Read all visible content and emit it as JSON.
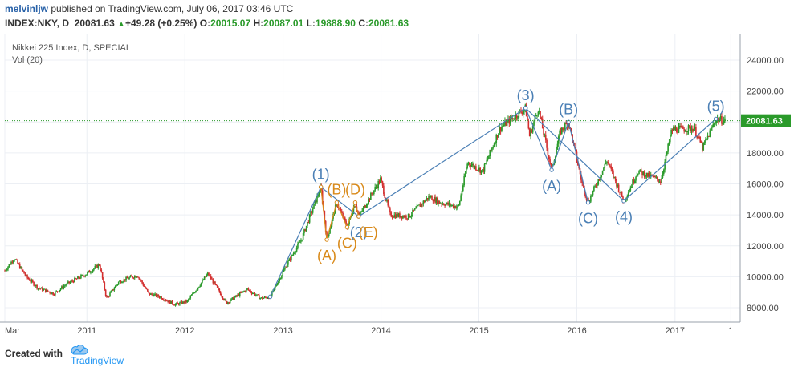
{
  "header": {
    "user": "melvinljw",
    "publish_text": " published on TradingView.com, July 06, 2017 03:46 UTC",
    "symbol": "INDEX:NKY, D",
    "last": "20081.63",
    "change_arrow": "▲",
    "change": "+49.28 (+0.25%)",
    "o_label": "O:",
    "o_value": "20015.07",
    "h_label": "H:",
    "h_value": "20087.01",
    "l_label": "L:",
    "l_value": "19888.90",
    "c_label": "C:",
    "c_value": "20081.63"
  },
  "legend": {
    "title": "Nikkei 225 Index, D, SPECIAL",
    "vol": "Vol (20)"
  },
  "footer": {
    "created": "Created with",
    "brand": "TradingView"
  },
  "colors": {
    "up": "#2a9a2a",
    "down": "#d32f2f",
    "wave_blue": "#4a7fb5",
    "wave_orange": "#d98a1a",
    "price_tag": "#2a9a2a",
    "grid": "#eceff4"
  },
  "chart_data": {
    "type": "line",
    "title": "Nikkei 225 Index, D, SPECIAL",
    "x_ticks": [
      "Mar",
      "2011",
      "2012",
      "2013",
      "2014",
      "2015",
      "2016",
      "2017",
      "1"
    ],
    "y_ticks": [
      "8000.00",
      "10000.00",
      "12000.00",
      "14000.00",
      "16000.00",
      "18000.00",
      "20000.00",
      "22000.00",
      "24000.00"
    ],
    "ylim": [
      7000,
      25000
    ],
    "last_price": 20081.63,
    "last_price_label": "20081.63",
    "series": [
      {
        "values": [
          [
            "2010-03-01",
            10400
          ],
          [
            "2010-04-05",
            11200
          ],
          [
            "2010-05-20",
            10000
          ],
          [
            "2010-07-01",
            9300
          ],
          [
            "2010-08-31",
            8900
          ],
          [
            "2010-10-15",
            9500
          ],
          [
            "2010-12-31",
            10200
          ],
          [
            "2011-02-17",
            10800
          ],
          [
            "2011-03-15",
            8600
          ],
          [
            "2011-05-01",
            9700
          ],
          [
            "2011-07-08",
            10100
          ],
          [
            "2011-08-19",
            8900
          ],
          [
            "2011-10-01",
            8700
          ],
          [
            "2011-11-25",
            8200
          ],
          [
            "2012-01-10",
            8400
          ],
          [
            "2012-03-27",
            10200
          ],
          [
            "2012-06-04",
            8300
          ],
          [
            "2012-08-20",
            9200
          ],
          [
            "2012-10-10",
            8600
          ],
          [
            "2012-11-14",
            8700
          ],
          [
            "2013-01-15",
            10800
          ],
          [
            "2013-03-10",
            12400
          ],
          [
            "2013-05-22",
            15800
          ],
          [
            "2013-06-13",
            12400
          ],
          [
            "2013-07-20",
            14800
          ],
          [
            "2013-08-28",
            13200
          ],
          [
            "2013-09-27",
            14800
          ],
          [
            "2013-10-10",
            13900
          ],
          [
            "2013-12-30",
            16300
          ],
          [
            "2014-02-04",
            14000
          ],
          [
            "2014-04-14",
            13900
          ],
          [
            "2014-06-30",
            15200
          ],
          [
            "2014-08-08",
            14800
          ],
          [
            "2014-10-17",
            14500
          ],
          [
            "2014-11-20",
            17400
          ],
          [
            "2015-01-15",
            16800
          ],
          [
            "2015-03-20",
            19600
          ],
          [
            "2015-06-24",
            20900
          ],
          [
            "2015-07-09",
            19100
          ],
          [
            "2015-08-10",
            20900
          ],
          [
            "2015-09-29",
            16900
          ],
          [
            "2015-11-01",
            19400
          ],
          [
            "2015-12-01",
            20000
          ],
          [
            "2016-01-21",
            16000
          ],
          [
            "2016-02-12",
            14800
          ],
          [
            "2016-04-22",
            17500
          ],
          [
            "2016-06-24",
            14900
          ],
          [
            "2016-08-15",
            16800
          ],
          [
            "2016-11-09",
            16200
          ],
          [
            "2016-12-20",
            19500
          ],
          [
            "2017-03-13",
            19600
          ],
          [
            "2017-04-14",
            18300
          ],
          [
            "2017-06-02",
            20200
          ],
          [
            "2017-07-06",
            20081
          ]
        ]
      }
    ],
    "annotations": [
      {
        "label": "(1)",
        "date": "2013-05-22",
        "price": 15800,
        "color": "blue",
        "pos": "above"
      },
      {
        "label": "(2)",
        "date": "2013-10-10",
        "price": 13900,
        "color": "blue",
        "pos": "below"
      },
      {
        "label": "(3)",
        "date": "2015-06-24",
        "price": 20900,
        "color": "blue",
        "pos": "above"
      },
      {
        "label": "(4)",
        "date": "2016-06-24",
        "price": 14900,
        "color": "blue",
        "pos": "below"
      },
      {
        "label": "(5)",
        "date": "2017-06-02",
        "price": 20200,
        "color": "blue",
        "pos": "above"
      },
      {
        "label": "(A)",
        "date": "2013-06-13",
        "price": 12400,
        "color": "orange",
        "pos": "below"
      },
      {
        "label": "(B)",
        "date": "2013-07-20",
        "price": 14800,
        "color": "orange",
        "pos": "above"
      },
      {
        "label": "(C)",
        "date": "2013-08-28",
        "price": 13200,
        "color": "orange",
        "pos": "below"
      },
      {
        "label": "(D)",
        "date": "2013-09-27",
        "price": 14800,
        "color": "orange",
        "pos": "above"
      },
      {
        "label": "(E)",
        "date": "2013-10-10",
        "price": 13900,
        "color": "orange",
        "pos": "below"
      },
      {
        "label": "(A)",
        "date": "2015-09-29",
        "price": 16900,
        "color": "blue",
        "pos": "below"
      },
      {
        "label": "(B)",
        "date": "2015-12-01",
        "price": 20000,
        "color": "blue",
        "pos": "above"
      },
      {
        "label": "(C)",
        "date": "2016-02-12",
        "price": 14800,
        "color": "blue",
        "pos": "below"
      }
    ],
    "wave_lines": [
      {
        "color": "blue",
        "points": [
          [
            "2012-11-14",
            8700
          ],
          [
            "2013-05-22",
            15800
          ],
          [
            "2013-10-10",
            13900
          ],
          [
            "2015-06-24",
            20900
          ],
          [
            "2016-06-24",
            14900
          ],
          [
            "2017-06-02",
            20200
          ]
        ]
      },
      {
        "color": "blue",
        "points": [
          [
            "2015-06-24",
            20900
          ],
          [
            "2015-09-29",
            16900
          ],
          [
            "2015-12-01",
            20000
          ],
          [
            "2016-02-12",
            14800
          ]
        ]
      },
      {
        "color": "orange",
        "points": [
          [
            "2013-05-22",
            15800
          ],
          [
            "2013-06-13",
            12400
          ],
          [
            "2013-07-20",
            14800
          ],
          [
            "2013-08-28",
            13200
          ],
          [
            "2013-09-27",
            14800
          ],
          [
            "2013-10-10",
            13900
          ]
        ]
      }
    ]
  }
}
